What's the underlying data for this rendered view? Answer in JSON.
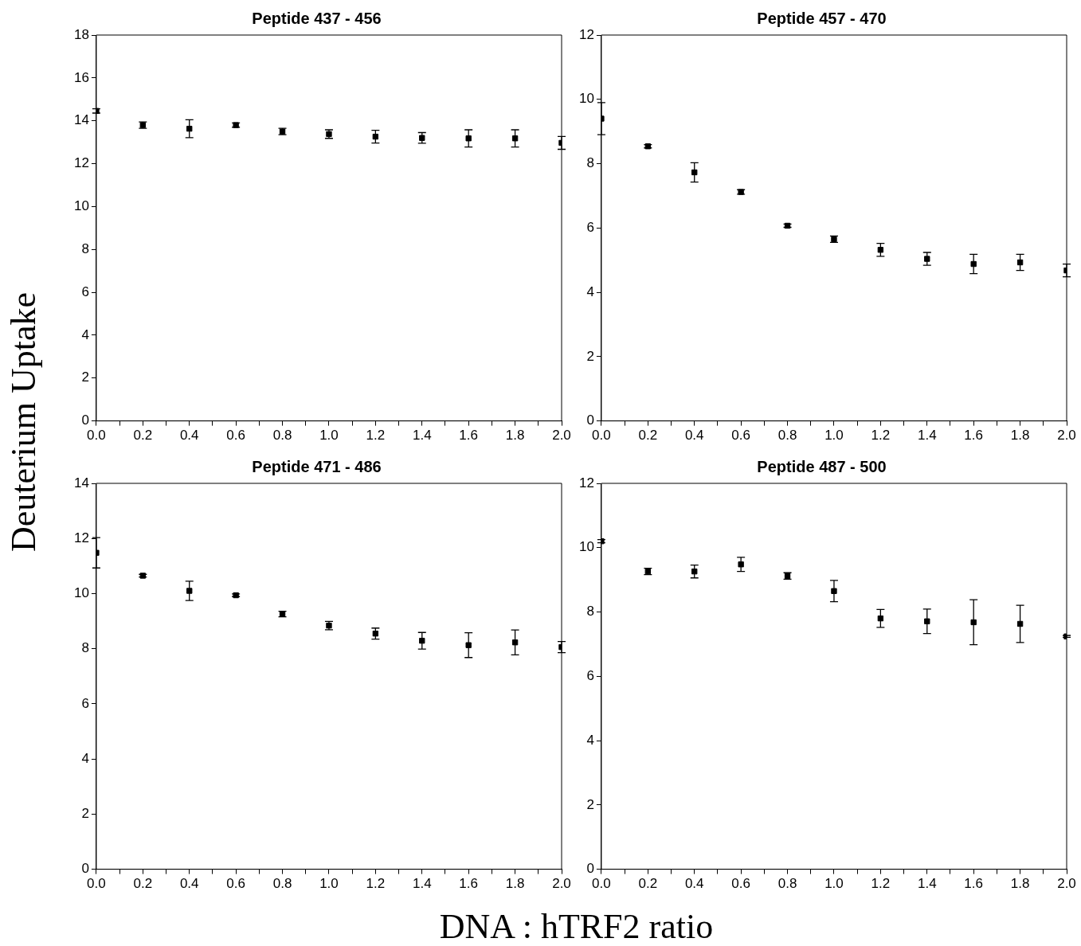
{
  "chart_data": [
    {
      "type": "scatter",
      "title": "Peptide 437 - 456",
      "ylabel": "Deuterium Uptake",
      "marker": "square",
      "color": "#000000",
      "grid": false,
      "x": [
        0,
        0.2,
        0.4,
        0.6,
        0.8,
        1.0,
        1.2,
        1.4,
        1.6,
        1.8,
        2.0
      ],
      "values": [
        14.46,
        13.8,
        13.63,
        13.8,
        13.5,
        13.38,
        13.26,
        13.2,
        13.18,
        13.18,
        12.97
      ],
      "errors": [
        0.1,
        0.15,
        0.42,
        0.1,
        0.15,
        0.2,
        0.3,
        0.25,
        0.4,
        0.4,
        0.3
      ],
      "xlim": [
        0,
        2
      ],
      "xticks": [
        {
          "value": 0,
          "label": "0.0"
        },
        {
          "value": 0.1,
          "label": null
        },
        {
          "value": 0.2,
          "label": "0.2"
        },
        {
          "value": 0.3,
          "label": null
        },
        {
          "value": 0.4,
          "label": "0.4"
        },
        {
          "value": 0.5,
          "label": null
        },
        {
          "value": 0.6,
          "label": "0.6"
        },
        {
          "value": 0.7,
          "label": null
        },
        {
          "value": 0.8,
          "label": "0.8"
        },
        {
          "value": 0.9,
          "label": null
        },
        {
          "value": 1,
          "label": "1.0"
        },
        {
          "value": 1.1,
          "label": null
        },
        {
          "value": 1.2,
          "label": "1.2"
        },
        {
          "value": 1.3,
          "label": null
        },
        {
          "value": 1.4,
          "label": "1.4"
        },
        {
          "value": 1.5,
          "label": null
        },
        {
          "value": 1.6,
          "label": "1.6"
        },
        {
          "value": 1.7,
          "label": null
        },
        {
          "value": 1.8,
          "label": "1.8"
        },
        {
          "value": 1.9,
          "label": null
        },
        {
          "value": 2,
          "label": "2.0"
        }
      ],
      "ylim": [
        0,
        18
      ],
      "yticks": [
        0,
        2,
        4,
        6,
        8,
        10,
        12,
        14,
        16,
        18
      ]
    },
    {
      "type": "scatter",
      "title": "Peptide 457 - 470",
      "marker": "square",
      "color": "#000000",
      "grid": false,
      "x": [
        0,
        0.2,
        0.4,
        0.6,
        0.8,
        1.0,
        1.2,
        1.4,
        1.6,
        1.8,
        2.0
      ],
      "values": [
        9.4,
        8.54,
        7.73,
        7.12,
        6.07,
        5.65,
        5.32,
        5.04,
        4.88,
        4.93,
        4.68
      ],
      "errors": [
        0.5,
        0.05,
        0.3,
        0.07,
        0.05,
        0.1,
        0.2,
        0.2,
        0.3,
        0.25,
        0.2
      ],
      "xlim": [
        0,
        2
      ],
      "xticks": [
        {
          "value": 0,
          "label": "0.0"
        },
        {
          "value": 0.1,
          "label": null
        },
        {
          "value": 0.2,
          "label": "0.2"
        },
        {
          "value": 0.3,
          "label": null
        },
        {
          "value": 0.4,
          "label": "0.4"
        },
        {
          "value": 0.5,
          "label": null
        },
        {
          "value": 0.6,
          "label": "0.6"
        },
        {
          "value": 0.7,
          "label": null
        },
        {
          "value": 0.8,
          "label": "0.8"
        },
        {
          "value": 0.9,
          "label": null
        },
        {
          "value": 1,
          "label": "1.0"
        },
        {
          "value": 1.1,
          "label": null
        },
        {
          "value": 1.2,
          "label": "1.2"
        },
        {
          "value": 1.3,
          "label": null
        },
        {
          "value": 1.4,
          "label": "1.4"
        },
        {
          "value": 1.5,
          "label": null
        },
        {
          "value": 1.6,
          "label": "1.6"
        },
        {
          "value": 1.7,
          "label": null
        },
        {
          "value": 1.8,
          "label": "1.8"
        },
        {
          "value": 1.9,
          "label": null
        },
        {
          "value": 2,
          "label": "2.0"
        }
      ],
      "ylim": [
        0,
        12
      ],
      "yticks": [
        0,
        2,
        4,
        6,
        8,
        10,
        12
      ]
    },
    {
      "type": "scatter",
      "title": "Peptide 471 - 486",
      "marker": "square",
      "color": "#000000",
      "grid": false,
      "x": [
        0,
        0.2,
        0.4,
        0.6,
        0.8,
        1.0,
        1.2,
        1.4,
        1.6,
        1.8,
        2.0
      ],
      "values": [
        11.48,
        10.65,
        10.1,
        9.94,
        9.26,
        8.84,
        8.55,
        8.29,
        8.13,
        8.23,
        8.06
      ],
      "errors": [
        0.55,
        0.05,
        0.35,
        0.05,
        0.1,
        0.15,
        0.2,
        0.3,
        0.45,
        0.45,
        0.2
      ],
      "xlim": [
        0,
        2
      ],
      "xticks": [
        {
          "value": 0,
          "label": "0.0"
        },
        {
          "value": 0.1,
          "label": null
        },
        {
          "value": 0.2,
          "label": "0.2"
        },
        {
          "value": 0.3,
          "label": null
        },
        {
          "value": 0.4,
          "label": "0.4"
        },
        {
          "value": 0.5,
          "label": null
        },
        {
          "value": 0.6,
          "label": "0.6"
        },
        {
          "value": 0.7,
          "label": null
        },
        {
          "value": 0.8,
          "label": "0.8"
        },
        {
          "value": 0.9,
          "label": null
        },
        {
          "value": 1,
          "label": "1.0"
        },
        {
          "value": 1.1,
          "label": null
        },
        {
          "value": 1.2,
          "label": "1.2"
        },
        {
          "value": 1.3,
          "label": null
        },
        {
          "value": 1.4,
          "label": "1.4"
        },
        {
          "value": 1.5,
          "label": null
        },
        {
          "value": 1.6,
          "label": "1.6"
        },
        {
          "value": 1.7,
          "label": null
        },
        {
          "value": 1.8,
          "label": "1.8"
        },
        {
          "value": 1.9,
          "label": null
        },
        {
          "value": 2,
          "label": "2.0"
        }
      ],
      "ylim": [
        0,
        14
      ],
      "yticks": [
        0,
        2,
        4,
        6,
        8,
        10,
        12,
        14
      ]
    },
    {
      "type": "scatter",
      "title": "Peptide 487 - 500",
      "xlabel": "DNA : hTRF2 ratio",
      "marker": "square",
      "color": "#000000",
      "grid": false,
      "x": [
        0,
        0.2,
        0.4,
        0.6,
        0.8,
        1.0,
        1.2,
        1.4,
        1.6,
        1.8,
        2.0
      ],
      "values": [
        10.2,
        9.26,
        9.26,
        9.48,
        9.12,
        8.65,
        7.8,
        7.71,
        7.68,
        7.63,
        7.24
      ],
      "errors": [
        0.05,
        0.1,
        0.2,
        0.22,
        0.1,
        0.33,
        0.28,
        0.38,
        0.7,
        0.58,
        0.03
      ],
      "xlim": [
        0,
        2
      ],
      "xticks": [
        {
          "value": 0,
          "label": "0.0"
        },
        {
          "value": 0.1,
          "label": null
        },
        {
          "value": 0.2,
          "label": "0.2"
        },
        {
          "value": 0.3,
          "label": null
        },
        {
          "value": 0.4,
          "label": "0.4"
        },
        {
          "value": 0.5,
          "label": null
        },
        {
          "value": 0.6,
          "label": "0.6"
        },
        {
          "value": 0.7,
          "label": null
        },
        {
          "value": 0.8,
          "label": "0.8"
        },
        {
          "value": 0.9,
          "label": null
        },
        {
          "value": 1,
          "label": "1.0"
        },
        {
          "value": 1.1,
          "label": null
        },
        {
          "value": 1.2,
          "label": "1.2"
        },
        {
          "value": 1.3,
          "label": null
        },
        {
          "value": 1.4,
          "label": "1.4"
        },
        {
          "value": 1.5,
          "label": null
        },
        {
          "value": 1.6,
          "label": "1.6"
        },
        {
          "value": 1.7,
          "label": null
        },
        {
          "value": 1.8,
          "label": "1.8"
        },
        {
          "value": 1.9,
          "label": null
        },
        {
          "value": 2,
          "label": "2.0"
        }
      ],
      "ylim": [
        0,
        12
      ],
      "yticks": [
        0,
        2,
        4,
        6,
        8,
        10,
        12
      ]
    }
  ]
}
